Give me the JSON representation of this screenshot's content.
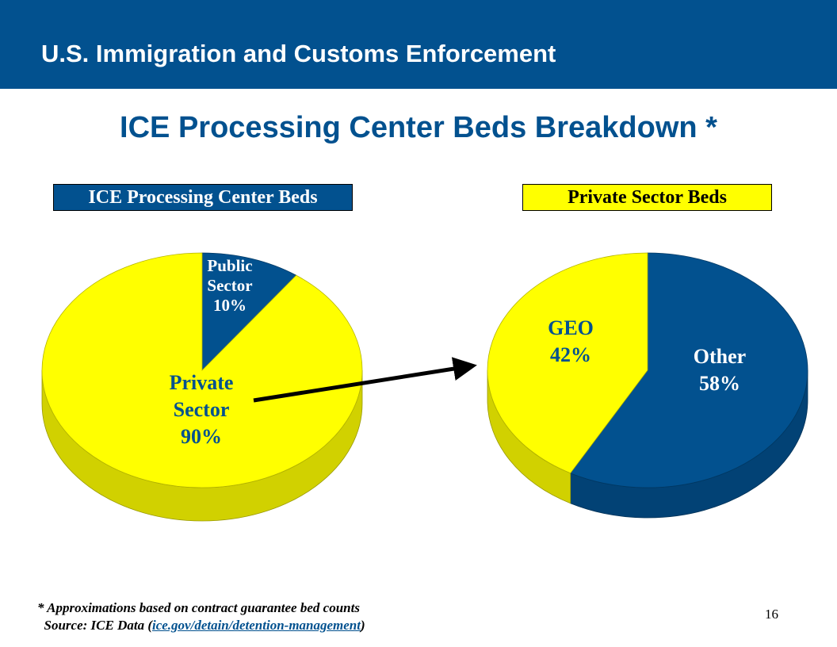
{
  "header": {
    "title": "U.S. Immigration and Customs Enforcement"
  },
  "slide": {
    "title": "ICE Processing Center Beds Breakdown *",
    "page_number": "16"
  },
  "colors": {
    "brand_blue": "#02518f",
    "accent_yellow": "#ffff00"
  },
  "chart_data": [
    {
      "type": "pie",
      "title": "ICE Processing Center Beds",
      "slices": [
        {
          "name": "Public Sector",
          "value": 10,
          "label_lines": [
            "Public",
            "Sector",
            "10%"
          ],
          "color": "#02518f"
        },
        {
          "name": "Private Sector",
          "value": 90,
          "label_lines": [
            "Private",
            "Sector",
            "90%"
          ],
          "color": "#ffff00"
        }
      ]
    },
    {
      "type": "pie",
      "title": "Private Sector Beds",
      "slices": [
        {
          "name": "Other",
          "value": 58,
          "label_lines": [
            "Other",
            "58%"
          ],
          "color": "#02518f"
        },
        {
          "name": "GEO",
          "value": 42,
          "label_lines": [
            "GEO",
            "42%"
          ],
          "color": "#ffff00"
        }
      ]
    }
  ],
  "footnote": {
    "line1": "* Approximations based on contract guarantee bed counts",
    "source_prefix": "Source: ICE Data (",
    "source_link": "ice.gov/detain/detention-management",
    "source_suffix": ")"
  }
}
